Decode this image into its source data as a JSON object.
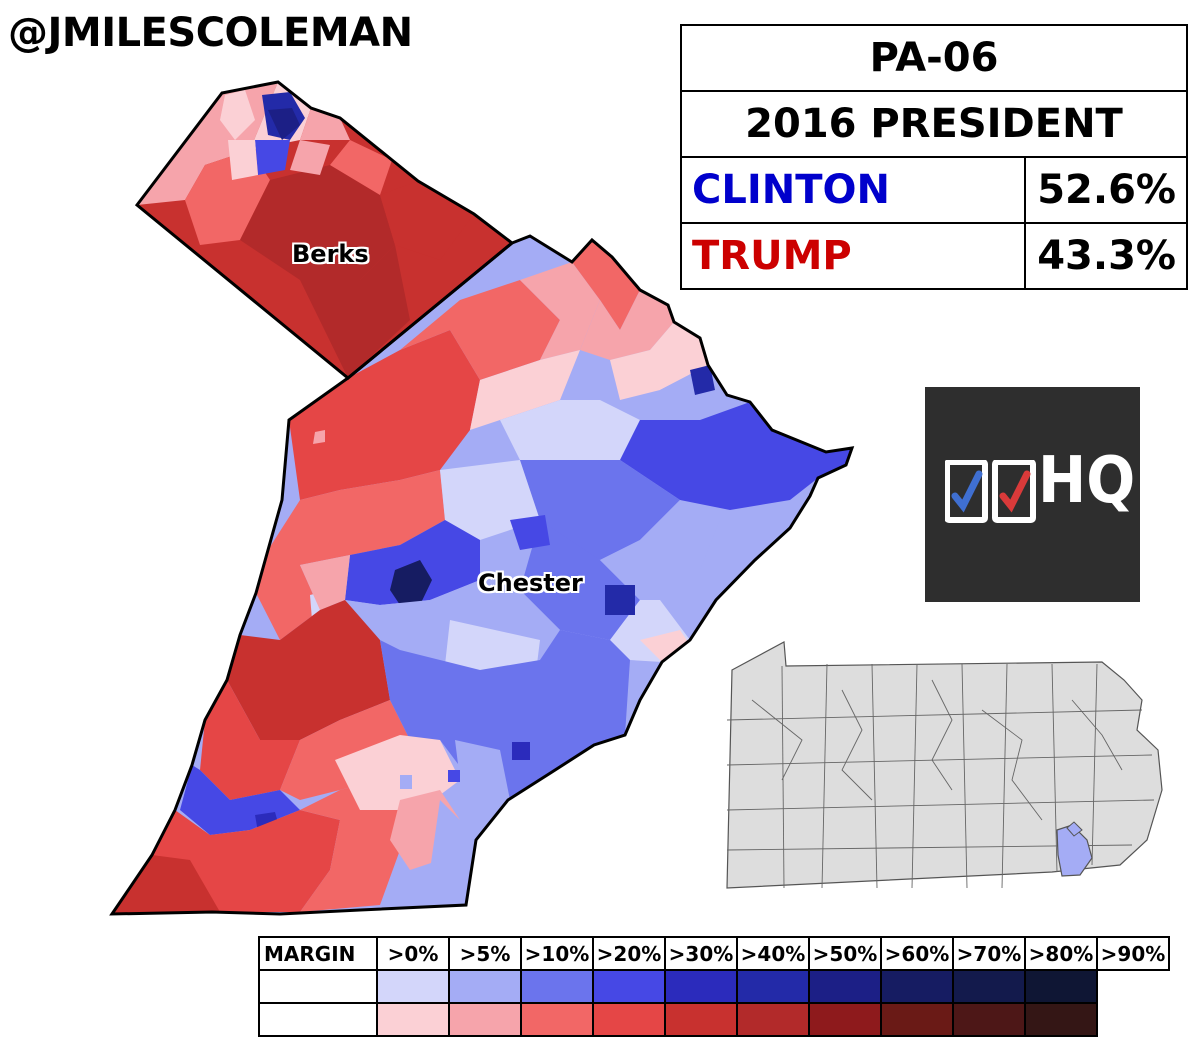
{
  "author_handle": "@JMILESCOLEMAN",
  "results_box": {
    "district": "PA-06",
    "race": "2016 PRESIDENT",
    "candidates": [
      {
        "name": "CLINTON",
        "pct": "52.6%",
        "color": "#0000cc"
      },
      {
        "name": "TRUMP",
        "pct": "43.3%",
        "color": "#cc0000"
      }
    ]
  },
  "county_labels": {
    "berks": "Berks",
    "chester": "Chester"
  },
  "logo": {
    "text": "HQ",
    "icon": "ddhq-checkbox-logo"
  },
  "colors": {
    "dem": [
      "#d3d6fa",
      "#a4acf5",
      "#6b74ed",
      "#4648e5",
      "#2b2bbc",
      "#232aa8",
      "#1c1f86",
      "#161c62",
      "#131a4c",
      "#0f1634"
    ],
    "rep": [
      "#fbd0d5",
      "#f6a4ab",
      "#f26766",
      "#e54646",
      "#c8312f",
      "#b22a2a",
      "#8e1a1c",
      "#6a1a16",
      "#4d1717",
      "#341615"
    ]
  },
  "legend": {
    "header": "MARGIN",
    "bins": [
      ">0%",
      ">5%",
      ">10%",
      ">20%",
      ">30%",
      ">40%",
      ">50%",
      ">60%",
      ">70%",
      ">80%",
      ">90%"
    ]
  },
  "state_inset": {
    "state": "Pennsylvania",
    "highlight_color": "#a4acf5",
    "base_color": "#dddddd"
  }
}
